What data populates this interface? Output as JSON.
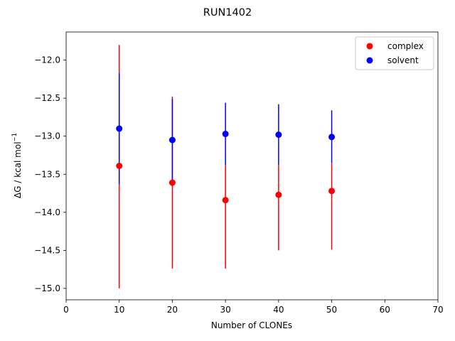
{
  "chart_data": {
    "type": "scatter",
    "title": "RUN1402",
    "xlabel": "Number of CLONEs",
    "ylabel_main": "ΔG / kcal mol",
    "ylabel_sup": "−1",
    "xlim": [
      0,
      70
    ],
    "ylim": [
      -15.15,
      -11.63
    ],
    "x_ticks": [
      0,
      10,
      20,
      30,
      40,
      50,
      60,
      70
    ],
    "x_tick_labels": [
      "0",
      "10",
      "20",
      "30",
      "40",
      "50",
      "60",
      "70"
    ],
    "y_ticks": [
      -12.0,
      -12.5,
      -13.0,
      -13.5,
      -14.0,
      -14.5,
      -15.0
    ],
    "y_tick_labels": [
      "−12.0",
      "−12.5",
      "−13.0",
      "−13.5",
      "−14.0",
      "−14.5",
      "−15.0"
    ],
    "grid": false,
    "legend_position": "top-right",
    "series": [
      {
        "name": "complex",
        "color": "#ff0000",
        "x": [
          10,
          20,
          30,
          40,
          50
        ],
        "y": [
          -13.39,
          -13.61,
          -13.84,
          -13.77,
          -13.72
        ],
        "err_low": [
          -15.0,
          -14.74,
          -14.74,
          -14.5,
          -14.49
        ],
        "err_high": [
          -11.8,
          -12.48,
          -13.38,
          -13.38,
          -13.35
        ]
      },
      {
        "name": "solvent",
        "color": "#0000ff",
        "x": [
          10,
          20,
          30,
          40,
          50
        ],
        "y": [
          -12.9,
          -13.05,
          -12.97,
          -12.98,
          -13.01
        ],
        "err_low": [
          -13.63,
          -13.59,
          -13.38,
          -13.38,
          -13.35
        ],
        "err_high": [
          -12.17,
          -12.51,
          -12.56,
          -12.58,
          -12.66
        ]
      }
    ]
  }
}
